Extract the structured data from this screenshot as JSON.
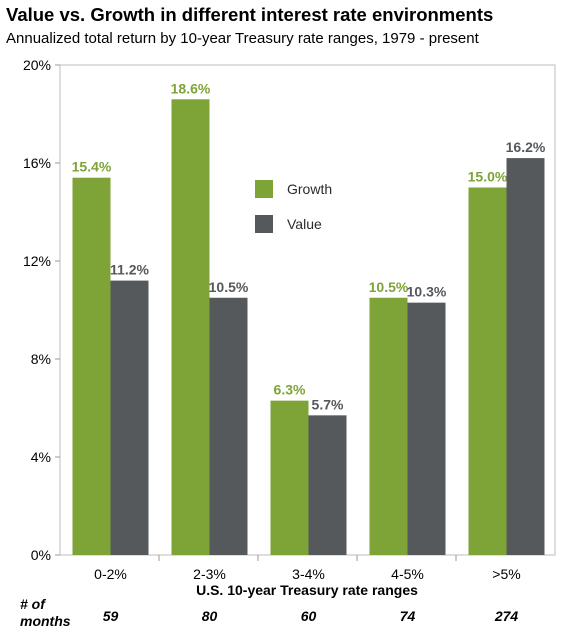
{
  "chart_data": {
    "type": "bar",
    "title": "Value vs. Growth in different interest rate environments",
    "subtitle": "Annualized total return by 10-year Treasury rate ranges, 1979 - present",
    "xlabel": "U.S. 10-year Treasury rate ranges",
    "ylabel": "",
    "ylim": [
      0,
      20
    ],
    "yticks": [
      "0%",
      "4%",
      "8%",
      "12%",
      "16%",
      "20%"
    ],
    "ytick_values": [
      0,
      4,
      8,
      12,
      16,
      20
    ],
    "categories": [
      "0-2%",
      "2-3%",
      "3-4%",
      "4-5%",
      ">5%"
    ],
    "series": [
      {
        "name": "Growth",
        "color": "#7ea337",
        "values": [
          15.4,
          18.6,
          6.3,
          10.5,
          15.0
        ],
        "labels": [
          "15.4%",
          "18.6%",
          "6.3%",
          "10.5%",
          "15.0%"
        ]
      },
      {
        "name": "Value",
        "color": "#55595c",
        "values": [
          11.2,
          10.5,
          5.7,
          10.3,
          16.2
        ],
        "labels": [
          "11.2%",
          "10.5%",
          "5.7%",
          "10.3%",
          "16.2%"
        ]
      }
    ],
    "legend_position": "center-left",
    "grid": false,
    "months": {
      "label_line1": "# of",
      "label_line2": "months",
      "values": [
        "59",
        "80",
        "60",
        "74",
        "274"
      ]
    }
  }
}
